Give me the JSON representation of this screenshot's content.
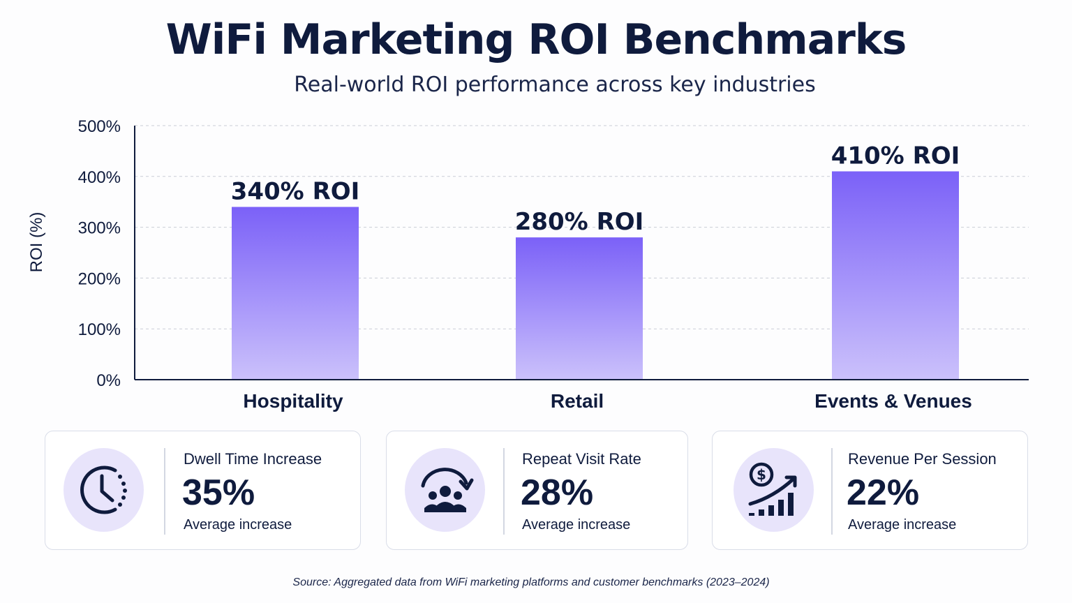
{
  "title": "WiFi Marketing ROI Benchmarks",
  "subtitle": "Real-world ROI performance across key industries",
  "chart_data": {
    "type": "bar",
    "categories": [
      "Hospitality",
      "Retail",
      "Events & Venues"
    ],
    "values": [
      340,
      280,
      410
    ],
    "data_labels": [
      "340% ROI",
      "280% ROI",
      "410% ROI"
    ],
    "ylabel": "ROI (%)",
    "ylim": [
      0,
      500
    ],
    "yticks": [
      "0%",
      "100%",
      "200%",
      "300%",
      "400%",
      "500%"
    ],
    "grid": true,
    "bar_color_top": "#7b61f8",
    "bar_color_bottom": "#cbc1fb"
  },
  "cards": [
    {
      "title": "Dwell Time Increase",
      "value": "35%",
      "subtitle": "Average increase",
      "icon": "clock-icon"
    },
    {
      "title": "Repeat Visit Rate",
      "value": "28%",
      "subtitle": "Average increase",
      "icon": "repeat-visitors-icon"
    },
    {
      "title": "Revenue Per Session",
      "value": "22%",
      "subtitle": "Average increase",
      "icon": "revenue-growth-icon"
    }
  ],
  "source": "Source: Aggregated data from WiFi marketing platforms and customer benchmarks (2023–2024)"
}
